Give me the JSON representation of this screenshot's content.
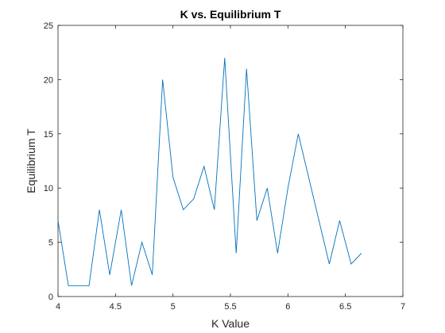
{
  "chart_data": {
    "type": "line",
    "title": "K vs. Equilibrium T",
    "xlabel": "K Value",
    "ylabel": "Equilibrium T",
    "xlim": [
      4,
      7
    ],
    "ylim": [
      0,
      25
    ],
    "xticks": [
      4,
      4.5,
      5,
      5.5,
      6,
      6.5,
      7
    ],
    "xtick_labels": [
      "4",
      "4.5",
      "5",
      "5.5",
      "6",
      "6.5",
      "7"
    ],
    "yticks": [
      0,
      5,
      10,
      15,
      20,
      25
    ],
    "ytick_labels": [
      "0",
      "5",
      "10",
      "15",
      "20",
      "25"
    ],
    "grid": false,
    "line_color": "#0072BD",
    "series": [
      {
        "x": [
          4.0,
          4.09,
          4.18,
          4.27,
          4.36,
          4.45,
          4.55,
          4.64,
          4.73,
          4.82,
          4.91,
          5.0,
          5.09,
          5.18,
          5.27,
          5.36,
          5.45,
          5.55,
          5.64,
          5.73,
          5.82,
          5.91,
          6.0,
          6.09,
          6.18,
          6.27,
          6.36,
          6.45,
          6.55,
          6.64
        ],
        "y": [
          7,
          1,
          1,
          1,
          8,
          2,
          8,
          1,
          5,
          2,
          20,
          11,
          8,
          9,
          12,
          8,
          22,
          4,
          21,
          7,
          10,
          4,
          10,
          15,
          11,
          7,
          3,
          7,
          3,
          4
        ]
      }
    ]
  }
}
